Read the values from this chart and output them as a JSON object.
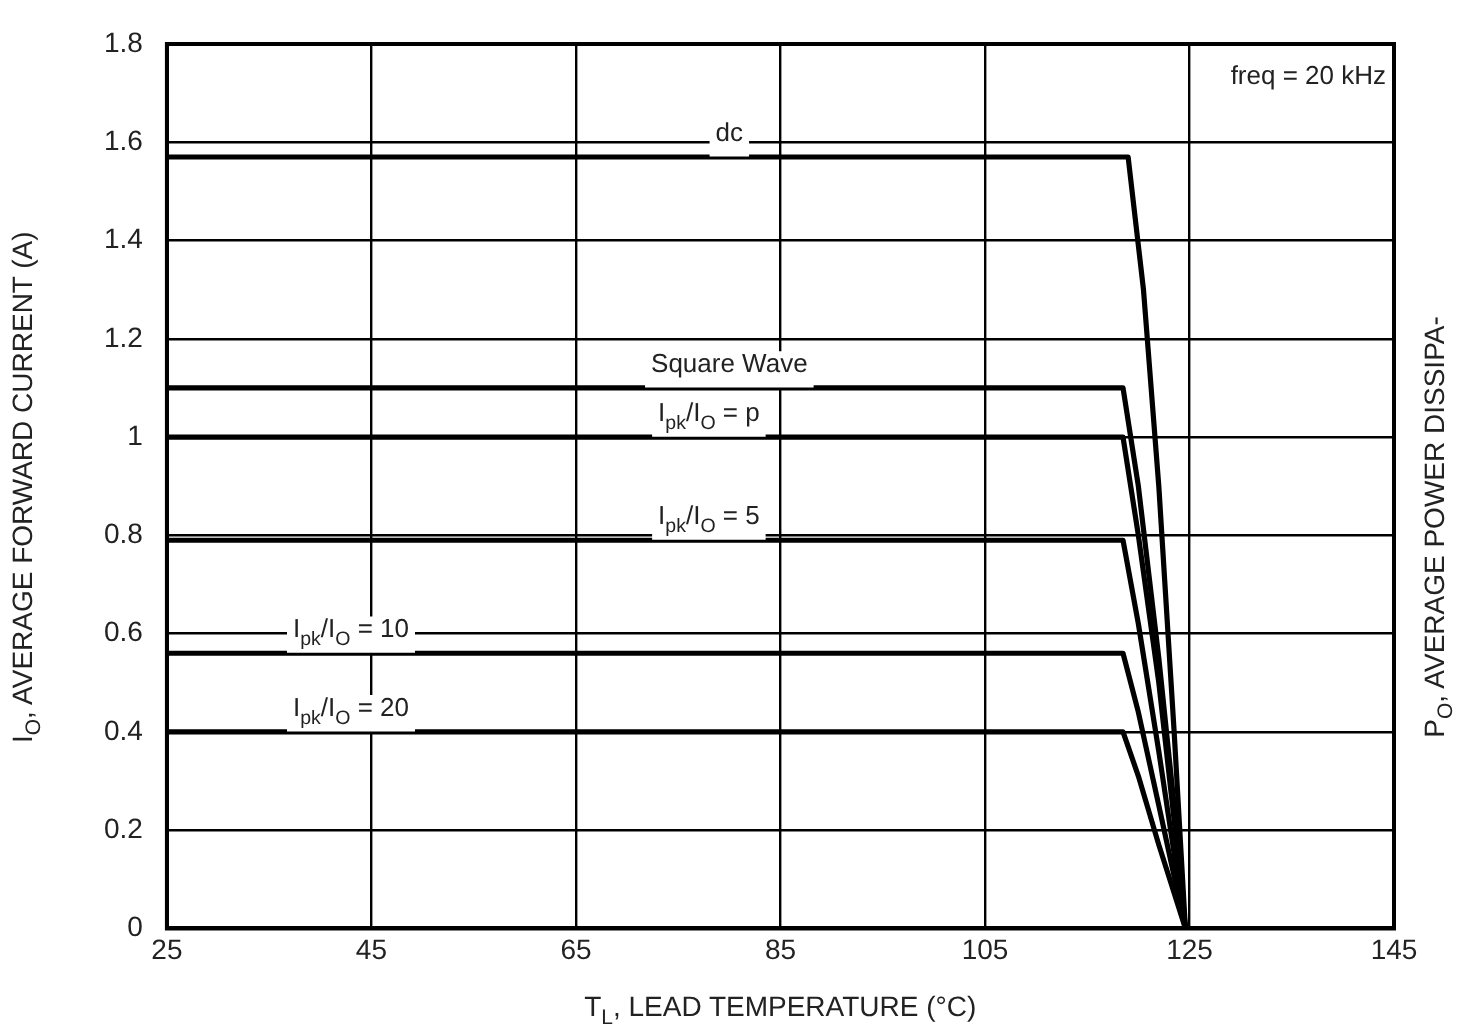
{
  "chart_data": {
    "type": "line",
    "xlabel": "T$_{L}$, LEAD TEMPERATURE (°C)",
    "ylabel": "I$_{O}$, AVERAGE FORWARD CURRENT (A)",
    "y2label": "P$_{O}$, AVERAGE POWER DISSIPA-",
    "xlim": [
      25,
      145
    ],
    "xticks": [
      25,
      45,
      65,
      85,
      105,
      125,
      145
    ],
    "ylim": [
      0,
      1.8
    ],
    "yticks": [
      0,
      0.2,
      0.4,
      0.6,
      0.8,
      1,
      1.2,
      1.4,
      1.6,
      1.8
    ],
    "grid": true,
    "legend": false,
    "marker": "none",
    "line_style": "solid",
    "series": [
      {
        "color": "#000000",
        "x": [
          25,
          119,
          120.5,
          122,
          123.5,
          124.6
        ],
        "values": [
          1.57,
          1.57,
          1.3,
          0.9,
          0.4,
          0
        ]
      },
      {
        "color": "#000000",
        "x": [
          25,
          118.5,
          120,
          122,
          123.5,
          124.6
        ],
        "values": [
          1.1,
          1.1,
          0.9,
          0.55,
          0.25,
          0
        ]
      },
      {
        "color": "#000000",
        "x": [
          25,
          118.5,
          120,
          122,
          123.5,
          124.6
        ],
        "values": [
          1,
          1,
          0.8,
          0.5,
          0.22,
          0
        ]
      },
      {
        "color": "#000000",
        "x": [
          25,
          118.5,
          120,
          122,
          124.6
        ],
        "values": [
          0.79,
          0.79,
          0.62,
          0.36,
          0
        ]
      },
      {
        "color": "#000000",
        "x": [
          25,
          118.5,
          120,
          122,
          124.6
        ],
        "values": [
          0.56,
          0.56,
          0.44,
          0.25,
          0
        ]
      },
      {
        "color": "#000000",
        "x": [
          25,
          118.5,
          120,
          122,
          124.6
        ],
        "values": [
          0.4,
          0.4,
          0.31,
          0.17,
          0
        ]
      }
    ],
    "annotations": [
      {
        "text": "dc",
        "x": 80,
        "y": 1.57
      },
      {
        "text": "Square Wave",
        "x": 80,
        "y": 1.1
      },
      {
        "text": "I$_{pk}$/I$_{O}$ = p",
        "x": 78,
        "y": 1
      },
      {
        "text": "I$_{pk}$/I$_{O}$ = 5",
        "x": 78,
        "y": 0.79
      },
      {
        "text": "I$_{pk}$/I$_{O}$ = 10",
        "x": 43,
        "y": 0.56
      },
      {
        "text": "I$_{pk}$/I$_{O}$ = 20",
        "x": 43,
        "y": 0.4
      },
      "freq = 20 kHz"
    ]
  }
}
